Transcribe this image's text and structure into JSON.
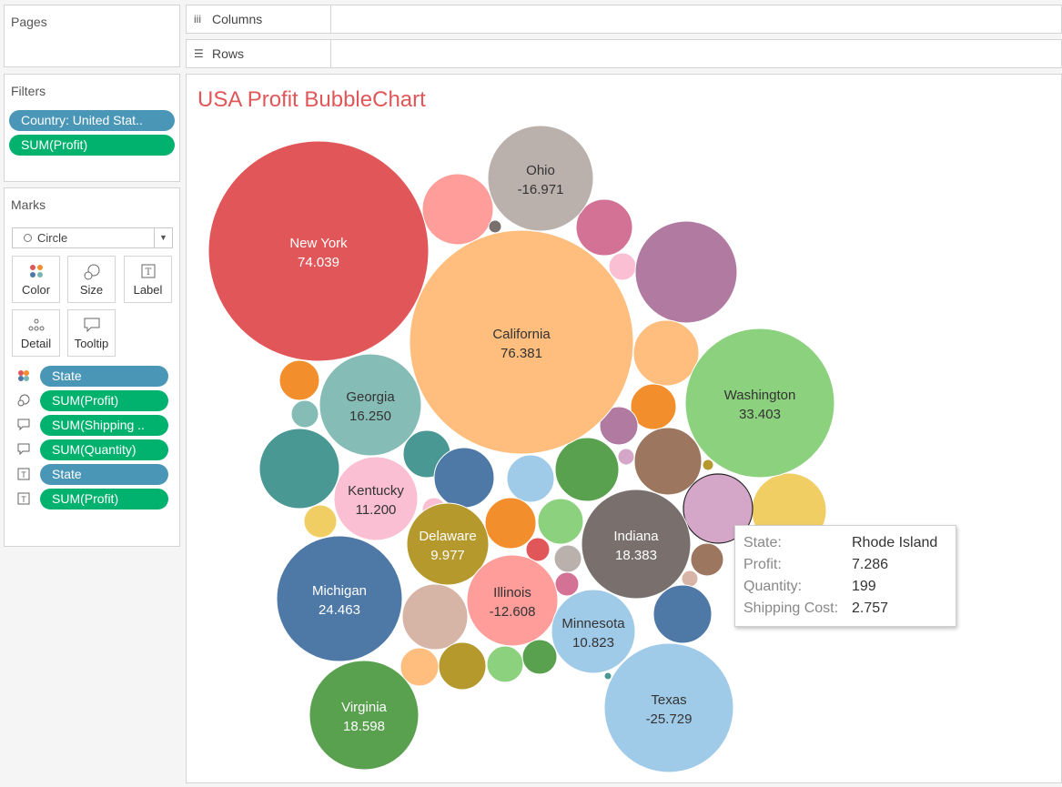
{
  "pages": {
    "title": "Pages"
  },
  "shelves": {
    "columns": "Columns",
    "rows": "Rows"
  },
  "filters": {
    "title": "Filters",
    "pills": [
      "Country: United Stat..",
      "SUM(Profit)"
    ]
  },
  "marks": {
    "title": "Marks",
    "type": "Circle",
    "buttons": [
      "Color",
      "Size",
      "Label",
      "Detail",
      "Tooltip"
    ],
    "fields": [
      {
        "label": "State",
        "kind": "dimension",
        "icon": "color-icon"
      },
      {
        "label": "SUM(Profit)",
        "kind": "measure",
        "icon": "size-icon"
      },
      {
        "label": "SUM(Shipping ..",
        "kind": "measure",
        "icon": "tooltip-icon"
      },
      {
        "label": "SUM(Quantity)",
        "kind": "measure",
        "icon": "tooltip-icon"
      },
      {
        "label": "State",
        "kind": "dimension",
        "icon": "label-icon"
      },
      {
        "label": "SUM(Profit)",
        "kind": "measure",
        "icon": "label-icon"
      }
    ]
  },
  "colors": {
    "title": "#e15759",
    "dimension_pill": "#4a96b7",
    "measure_pill": "#00b26e"
  },
  "chart_data": {
    "type": "bubble",
    "title": "USA Profit BubbleChart",
    "size_measure": "SUM(Profit)",
    "labeled_bubbles": [
      {
        "state": "New York",
        "profit": 74.039,
        "color": "#e15759"
      },
      {
        "state": "California",
        "profit": 76.381,
        "color": "#ffbe7d"
      },
      {
        "state": "Ohio",
        "profit": -16.971,
        "color": "#bab0ac"
      },
      {
        "state": "Washington",
        "profit": 33.403,
        "color": "#8cd17d"
      },
      {
        "state": "Georgia",
        "profit": 16.25,
        "color": "#86bcb6"
      },
      {
        "state": "Kentucky",
        "profit": 11.2,
        "color": "#fabfd2"
      },
      {
        "state": "Delaware",
        "profit": 9.977,
        "color": "#b6992d"
      },
      {
        "state": "Indiana",
        "profit": 18.383,
        "color": "#79706e"
      },
      {
        "state": "Michigan",
        "profit": 24.463,
        "color": "#4e79a7"
      },
      {
        "state": "Illinois",
        "profit": -12.608,
        "color": "#ff9d9a"
      },
      {
        "state": "Minnesota",
        "profit": 10.823,
        "color": "#a0cbe8"
      },
      {
        "state": "Virginia",
        "profit": 18.598,
        "color": "#59a14f"
      },
      {
        "state": "Texas",
        "profit": -25.729,
        "color": "#a0cbe8"
      }
    ],
    "unlabeled_bubble_colors": [
      "#ff9d9a",
      "#79706e",
      "#d37295",
      "#fabfd2",
      "#b07aa1",
      "#ffbe7d",
      "#f28e2b",
      "#f28e2b",
      "#86bcb6",
      "#499894",
      "#499894",
      "#4e79a7",
      "#a0cbe8",
      "#59a14f",
      "#b07aa1",
      "#d4a6c8",
      "#9d7660",
      "#b6992d",
      "#f1ce63",
      "#f1ce63",
      "#f28e2b",
      "#8cd17d",
      "#e15759",
      "#bab0ac",
      "#d37295",
      "#d4a6c8",
      "#9d7660",
      "#d7b5a6",
      "#4e79a7",
      "#d7b5a6",
      "#ffbe7d",
      "#b6992d",
      "#8cd17d",
      "#59a14f",
      "#499894",
      "#fabfd2",
      "#d4a6c8"
    ],
    "highlighted": "Rhode Island"
  },
  "tooltip": {
    "rows": [
      {
        "key": "State:",
        "value": "Rhode Island"
      },
      {
        "key": "Profit:",
        "value": "7.286"
      },
      {
        "key": "Quantity:",
        "value": "199"
      },
      {
        "key": "Shipping Cost:",
        "value": "2.757"
      }
    ]
  }
}
